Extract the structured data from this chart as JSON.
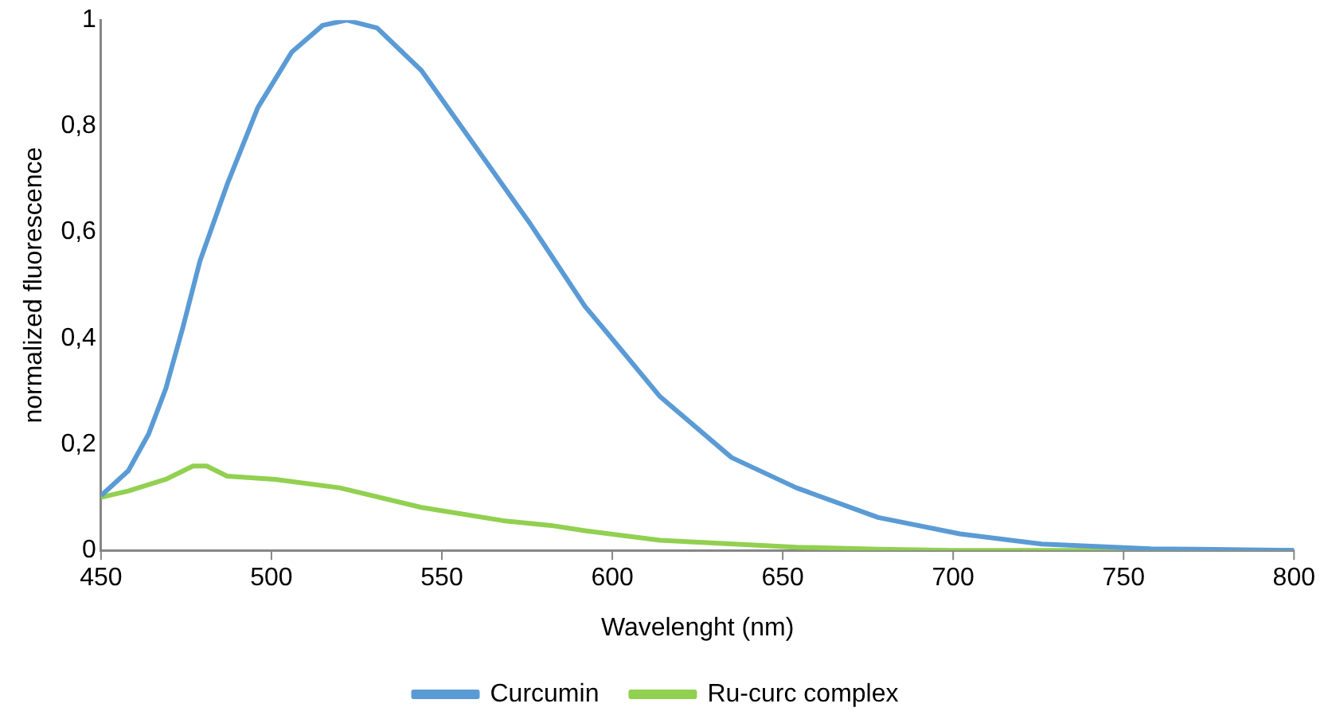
{
  "chart_data": {
    "type": "line",
    "xlabel": "Wavelenght (nm)",
    "ylabel": "normalized fluorescence",
    "xlim": [
      450,
      800
    ],
    "xticks": [
      450,
      500,
      550,
      600,
      650,
      700,
      750,
      800
    ],
    "ylim": [
      0,
      1
    ],
    "yticks": [
      0,
      {
        "value": 0.2,
        "label": "0,2"
      },
      {
        "value": 0.4,
        "label": "0,4"
      },
      {
        "value": 0.6,
        "label": "0,6"
      },
      {
        "value": 0.8,
        "label": "0,8"
      },
      1
    ],
    "grid": false,
    "legend": "bottom",
    "marker": "none",
    "line_style": "solid",
    "series": [
      {
        "name": "Curcumin",
        "color": "#5b9bd5",
        "x": [
          450,
          458,
          464,
          469,
          474,
          479,
          487,
          496,
          506,
          515,
          522,
          531,
          544,
          560,
          576,
          582,
          592,
          598,
          614,
          635,
          654,
          678,
          702,
          726,
          758,
          800
        ],
        "values": [
          0.103,
          0.15,
          0.22,
          0.305,
          0.42,
          0.545,
          0.69,
          0.835,
          0.94,
          0.99,
          1.0,
          0.985,
          0.905,
          0.76,
          0.615,
          0.557,
          0.46,
          0.414,
          0.29,
          0.175,
          0.118,
          0.062,
          0.031,
          0.012,
          0.003,
          0.0
        ]
      },
      {
        "name": "Ru-curc complex",
        "color": "#92d050",
        "x": [
          450,
          458,
          469,
          477,
          481,
          487,
          501,
          520,
          544,
          568,
          582,
          592,
          614,
          654,
          678,
          700,
          800
        ],
        "values": [
          0.1,
          0.112,
          0.134,
          0.159,
          0.159,
          0.14,
          0.134,
          0.118,
          0.081,
          0.056,
          0.047,
          0.037,
          0.019,
          0.006,
          0.002,
          0.0,
          0.0
        ]
      }
    ]
  }
}
